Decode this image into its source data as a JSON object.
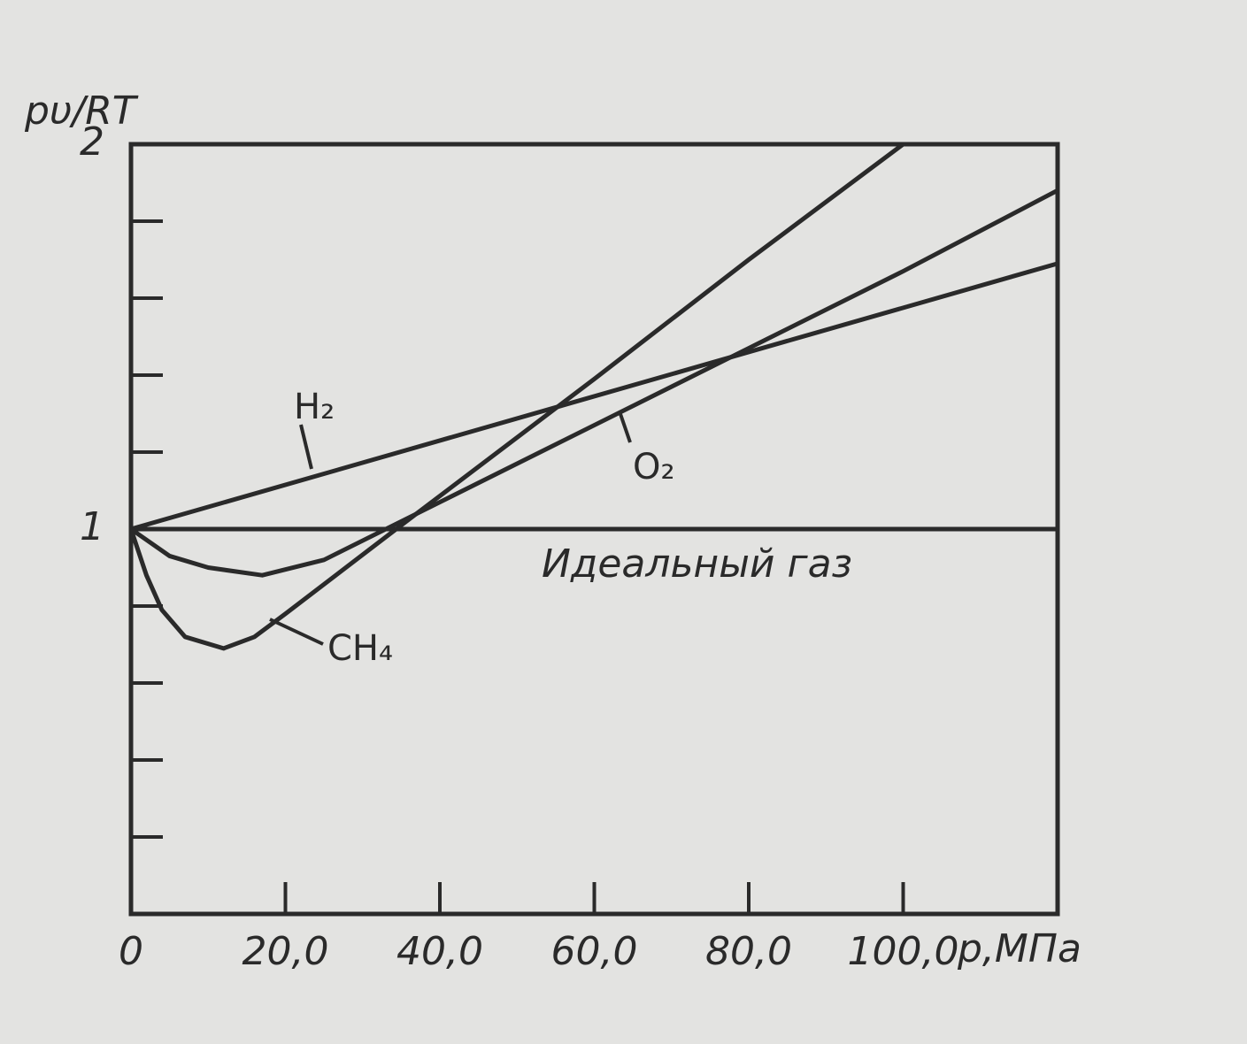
{
  "chart_data": {
    "type": "line",
    "y_label": "pυ/RT",
    "x_label": "p,МПа",
    "xlim": [
      0,
      120
    ],
    "ylim": [
      0,
      2
    ],
    "xticks": [
      {
        "value": 0,
        "label": "0"
      },
      {
        "value": 20,
        "label": "20,0"
      },
      {
        "value": 40,
        "label": "40,0"
      },
      {
        "value": 60,
        "label": "60,0"
      },
      {
        "value": 80,
        "label": "80,0"
      },
      {
        "value": 100,
        "label": "100,0"
      }
    ],
    "yticks": [
      1,
      2
    ],
    "y_minor_ticks": [
      0.2,
      0.4,
      0.6,
      0.8,
      1.2,
      1.4,
      1.6,
      1.8
    ],
    "color": "#2a2a2a",
    "series": [
      {
        "name": "Идеальный газ",
        "x": [
          0,
          120
        ],
        "values": [
          1,
          1
        ]
      },
      {
        "name": "H₂",
        "x": [
          0,
          120
        ],
        "values": [
          1,
          1.69
        ]
      },
      {
        "name": "O₂",
        "x": [
          0,
          5,
          10,
          17,
          25,
          30,
          40,
          60,
          80,
          100,
          120
        ],
        "values": [
          1,
          0.93,
          0.9,
          0.88,
          0.92,
          0.97,
          1.07,
          1.27,
          1.47,
          1.67,
          1.88
        ]
      },
      {
        "name": "CH₄",
        "x": [
          0,
          2,
          4,
          7,
          12,
          16,
          20,
          35,
          60,
          80,
          100
        ],
        "values": [
          1,
          0.88,
          0.79,
          0.72,
          0.69,
          0.72,
          0.78,
          1.01,
          1.39,
          1.7,
          2.0
        ]
      }
    ]
  }
}
